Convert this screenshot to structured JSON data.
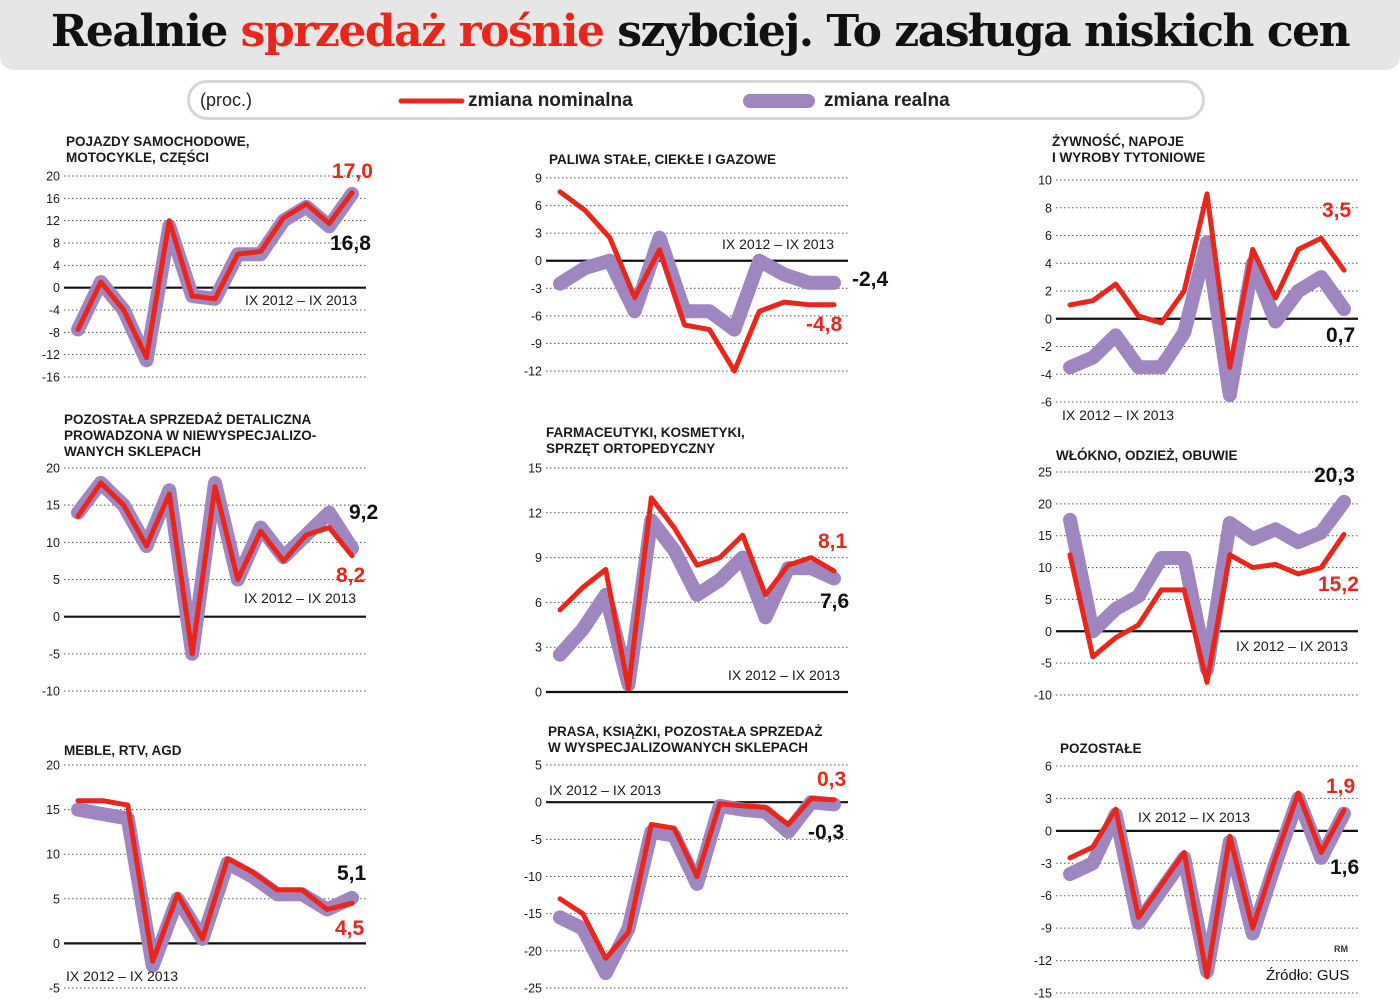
{
  "title": {
    "part1": "Realnie ",
    "part2": "sprzedaż rośnie",
    "part3": " szybciej.  To zasługa niskich cen"
  },
  "legend": {
    "unit": "(proc.)",
    "nominal": "zmiana nominalna",
    "real": "zmiana realna"
  },
  "colors": {
    "nominal": "#e8261c",
    "real": "#9f86c0",
    "axis": "#111111",
    "grid": "#555555"
  },
  "source": "Źródło: GUS",
  "author": "RM",
  "chart_data": [
    {
      "type": "line",
      "title": [
        "POJAZDY SAMOCHODOWE,",
        "MOTOCYKLE, CZĘŚCI"
      ],
      "period": "IX 2012 – IX 2013",
      "yticks": [
        20,
        16,
        12,
        8,
        4,
        0,
        -4,
        -8,
        -12,
        -16
      ],
      "ylim": [
        -16,
        20
      ],
      "series": [
        {
          "name": "zmiana realna",
          "values": [
            -7.5,
            1,
            -4,
            -13,
            11,
            -1.5,
            -2,
            6,
            6,
            12,
            14.5,
            11,
            16.8
          ]
        },
        {
          "name": "zmiana nominalna",
          "values": [
            -7.5,
            1,
            -4,
            -12.5,
            12,
            -1.5,
            -2,
            6,
            6.5,
            12.5,
            15,
            11.5,
            17.0
          ]
        }
      ],
      "labels": {
        "nominal": "17,0",
        "real": "16,8"
      }
    },
    {
      "type": "line",
      "title": [
        "PALIWA STAŁE, CIEKŁE I GAZOWE"
      ],
      "period": "IX 2012 – IX 2013",
      "yticks": [
        9,
        6,
        3,
        0,
        -3,
        -6,
        -9,
        -12
      ],
      "ylim": [
        -12,
        9
      ],
      "series": [
        {
          "name": "zmiana realna",
          "values": [
            -2.5,
            -0.8,
            0,
            -5.5,
            2.5,
            -5.5,
            -5.5,
            -7.5,
            0,
            -1.5,
            -2.4,
            -2.4
          ]
        },
        {
          "name": "zmiana nominalna",
          "values": [
            7.5,
            5.5,
            2.5,
            -4,
            1.2,
            -7,
            -7.5,
            -12,
            -5.5,
            -4.5,
            -4.8,
            -4.8
          ]
        }
      ],
      "labels": {
        "real": "-2,4",
        "nominal": "-4,8"
      }
    },
    {
      "type": "line",
      "title": [
        "ŻYWNOŚĆ, NAPOJE",
        "I WYROBY TYTONIOWE"
      ],
      "period": "IX 2012 – IX 2013",
      "yticks": [
        10,
        8,
        6,
        4,
        2,
        0,
        -2,
        -4,
        -6
      ],
      "ylim": [
        -6,
        10
      ],
      "series": [
        {
          "name": "zmiana realna",
          "values": [
            -3.5,
            -2.8,
            -1.2,
            -3.5,
            -3.5,
            -1,
            5.5,
            -5.5,
            4,
            -0.2,
            2,
            3,
            0.7
          ]
        },
        {
          "name": "zmiana nominalna",
          "values": [
            1,
            1.3,
            2.5,
            0.2,
            -0.3,
            2,
            9,
            -3.5,
            5,
            1.5,
            5,
            5.8,
            3.5
          ]
        }
      ],
      "labels": {
        "nominal": "3,5",
        "real": "0,7"
      }
    },
    {
      "type": "line",
      "title": [
        "POZOSTAŁA SPRZEDAŻ DETALICZNA",
        "PROWADZONA W NIEWYSPECJALIZO-",
        "WANYCH SKLEPACH"
      ],
      "period": "IX 2012 – IX 2013",
      "yticks": [
        20,
        15,
        10,
        5,
        0,
        -5,
        -10
      ],
      "ylim": [
        -10,
        20
      ],
      "series": [
        {
          "name": "zmiana realna",
          "values": [
            14,
            18,
            15,
            9.5,
            17,
            -5,
            18,
            5,
            12,
            8,
            11,
            14,
            9.2
          ]
        },
        {
          "name": "zmiana nominalna",
          "values": [
            13.5,
            18,
            15,
            9.5,
            16.5,
            -5,
            17.5,
            5,
            11.5,
            7.5,
            11,
            12,
            8.2
          ]
        }
      ],
      "labels": {
        "real": "9,2",
        "nominal": "8,2"
      }
    },
    {
      "type": "line",
      "title": [
        "FARMACEUTYKI, KOSMETYKI,",
        "SPRZĘT ORTOPEDYCZNY"
      ],
      "period": "IX 2012 – IX 2013",
      "yticks": [
        15,
        12,
        9,
        6,
        3,
        0
      ],
      "ylim": [
        0,
        15
      ],
      "series": [
        {
          "name": "zmiana realna",
          "values": [
            2.5,
            4.2,
            6.5,
            0.5,
            11.5,
            9.5,
            6.5,
            7.5,
            9,
            5,
            8.3,
            8.3,
            7.6
          ]
        },
        {
          "name": "zmiana nominalna",
          "values": [
            5.5,
            7,
            8.2,
            0.2,
            13,
            11,
            8.5,
            9,
            10.5,
            6.5,
            8.5,
            9,
            8.1
          ]
        }
      ],
      "labels": {
        "nominal": "8,1",
        "real": "7,6"
      }
    },
    {
      "type": "line",
      "title": [
        "WŁÓKNO, ODZIEŻ, OBUWIE"
      ],
      "period": "IX 2012 – IX 2013",
      "yticks": [
        25,
        20,
        15,
        10,
        5,
        0,
        -5,
        -10
      ],
      "ylim": [
        -10,
        25
      ],
      "series": [
        {
          "name": "zmiana realna",
          "values": [
            17.5,
            0,
            3.5,
            5.5,
            11.5,
            11.5,
            -6,
            17,
            14.5,
            16,
            14,
            15.5,
            20.3
          ]
        },
        {
          "name": "zmiana nominalna",
          "values": [
            12,
            -4,
            -1,
            1,
            6.5,
            6.5,
            -8,
            12,
            10,
            10.5,
            9,
            10,
            15.2
          ]
        }
      ],
      "labels": {
        "real": "20,3",
        "nominal": "15,2"
      }
    },
    {
      "type": "line",
      "title": [
        "MEBLE, RTV, AGD"
      ],
      "period": "IX 2012 – IX 2013",
      "yticks": [
        20,
        15,
        10,
        5,
        0,
        -5
      ],
      "ylim": [
        -5,
        20
      ],
      "series": [
        {
          "name": "zmiana realna",
          "values": [
            15,
            14.5,
            14,
            -2.5,
            5,
            0.5,
            9,
            7.5,
            5.5,
            5.5,
            3.8,
            5.1
          ]
        },
        {
          "name": "zmiana nominalna",
          "values": [
            16,
            16,
            15.5,
            -2,
            5.5,
            0.5,
            9.5,
            8,
            6,
            6,
            3.8,
            4.5
          ]
        }
      ],
      "labels": {
        "real": "5,1",
        "nominal": "4,5"
      }
    },
    {
      "type": "line",
      "title": [
        "PRASA, KSIĄŻKI, POZOSTAŁA SPRZEDAŻ",
        "W WYSPECJALIZOWANYCH SKLEPACH"
      ],
      "period": "IX 2012 – IX 2013",
      "yticks": [
        5,
        0,
        -5,
        -10,
        -15,
        -20,
        -25
      ],
      "ylim": [
        -25,
        5
      ],
      "series": [
        {
          "name": "zmiana realna",
          "values": [
            -15.5,
            -17,
            -23,
            -17,
            -4,
            -4.5,
            -11,
            -0.5,
            -1,
            -1.3,
            -4,
            0,
            -0.3
          ]
        },
        {
          "name": "zmiana nominalna",
          "values": [
            -13,
            -15,
            -21,
            -17.5,
            -3,
            -3.5,
            -10,
            -0.2,
            -0.5,
            -0.7,
            -3,
            0.5,
            0.3
          ]
        }
      ],
      "labels": {
        "nominal": "0,3",
        "real": "-0,3"
      }
    },
    {
      "type": "line",
      "title": [
        "POZOSTAŁE"
      ],
      "period": "IX 2012 – IX 2013",
      "yticks": [
        6,
        3,
        0,
        -3,
        -6,
        -9,
        -12,
        -15
      ],
      "ylim": [
        -15,
        6
      ],
      "series": [
        {
          "name": "zmiana realna",
          "values": [
            -4,
            -3,
            1.5,
            -8.5,
            -5.5,
            -2.5,
            -13,
            -1,
            -9.5,
            -3,
            3,
            -2.5,
            1.6
          ]
        },
        {
          "name": "zmiana nominalna",
          "values": [
            -2.5,
            -1.5,
            2,
            -8,
            -5,
            -2,
            -13.5,
            -0.5,
            -9,
            -2.5,
            3.5,
            -2,
            1.9
          ]
        }
      ],
      "labels": {
        "nominal": "1,9",
        "real": "1,6"
      }
    }
  ]
}
